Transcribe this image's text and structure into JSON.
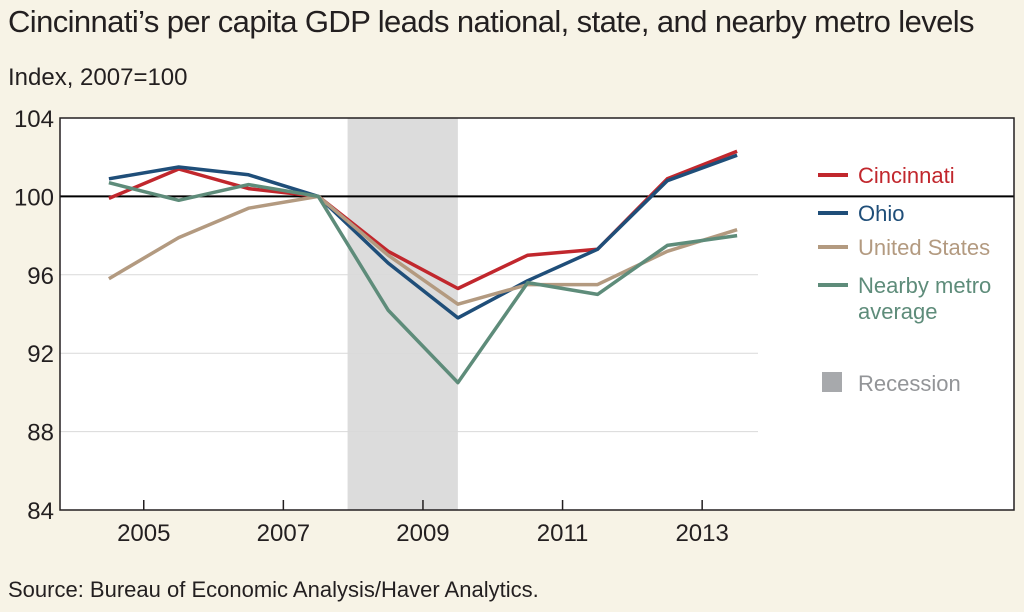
{
  "title": "Cincinnati’s per capita GDP leads national, state, and nearby metro levels",
  "subtitle": "Index, 2007=100",
  "source": "Source: Bureau of Economic Analysis/Haver Analytics.",
  "chart_data": {
    "type": "line",
    "ylim": [
      84,
      104
    ],
    "xlim": [
      2003.8,
      2013.8
    ],
    "yticks": [
      84,
      88,
      92,
      96,
      100,
      104
    ],
    "xticks": [
      2005,
      2007,
      2009,
      2011,
      2013
    ],
    "ylabel": "Index, 2007=100",
    "reference_line": 100,
    "grid": true,
    "legend_position": "right",
    "recession": {
      "label": "Recession",
      "start": 2007.92,
      "end": 2009.5,
      "color": "#dcdcdc"
    },
    "x": [
      2004.5,
      2005.5,
      2006.5,
      2007.5,
      2008.5,
      2009.5,
      2010.5,
      2011.5,
      2012.5,
      2013.5
    ],
    "series": [
      {
        "name": "Cincinnati",
        "color": "#c1272d",
        "values": [
          99.9,
          101.4,
          100.4,
          100.0,
          97.2,
          95.3,
          97.0,
          97.3,
          100.9,
          102.3
        ]
      },
      {
        "name": "Ohio",
        "color": "#1f4e79",
        "values": [
          100.9,
          101.5,
          101.1,
          100.0,
          96.6,
          93.8,
          95.7,
          97.3,
          100.8,
          102.1
        ]
      },
      {
        "name": "United States",
        "color": "#b39a80",
        "values": [
          95.8,
          97.9,
          99.4,
          100.0,
          97.0,
          94.5,
          95.5,
          95.5,
          97.2,
          98.3
        ]
      },
      {
        "name": "Nearby metro average",
        "color": "#5e8c7a",
        "values": [
          100.7,
          99.8,
          100.6,
          100.0,
          94.2,
          90.5,
          95.6,
          95.0,
          97.5,
          98.0
        ]
      }
    ]
  }
}
